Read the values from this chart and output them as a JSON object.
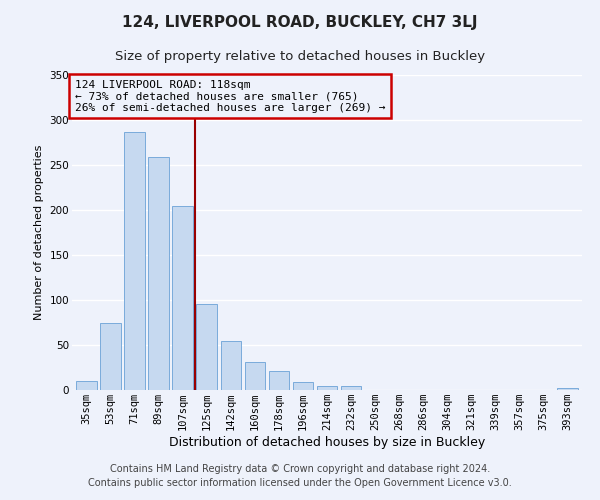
{
  "title": "124, LIVERPOOL ROAD, BUCKLEY, CH7 3LJ",
  "subtitle": "Size of property relative to detached houses in Buckley",
  "xlabel": "Distribution of detached houses by size in Buckley",
  "ylabel": "Number of detached properties",
  "bar_labels": [
    "35sqm",
    "53sqm",
    "71sqm",
    "89sqm",
    "107sqm",
    "125sqm",
    "142sqm",
    "160sqm",
    "178sqm",
    "196sqm",
    "214sqm",
    "232sqm",
    "250sqm",
    "268sqm",
    "286sqm",
    "304sqm",
    "321sqm",
    "339sqm",
    "357sqm",
    "375sqm",
    "393sqm"
  ],
  "bar_values": [
    10,
    74,
    287,
    259,
    204,
    96,
    54,
    31,
    21,
    9,
    5,
    4,
    0,
    0,
    0,
    0,
    0,
    0,
    0,
    0,
    2
  ],
  "bar_color": "#c6d9f0",
  "bar_edge_color": "#7aabdb",
  "vline_x": 4.5,
  "vline_color": "#990000",
  "ylim": [
    0,
    350
  ],
  "yticks": [
    0,
    50,
    100,
    150,
    200,
    250,
    300,
    350
  ],
  "annotation_title": "124 LIVERPOOL ROAD: 118sqm",
  "annotation_line1": "← 73% of detached houses are smaller (765)",
  "annotation_line2": "26% of semi-detached houses are larger (269) →",
  "annotation_box_color": "#cc0000",
  "footer_line1": "Contains HM Land Registry data © Crown copyright and database right 2024.",
  "footer_line2": "Contains public sector information licensed under the Open Government Licence v3.0.",
  "bg_color": "#eef2fb",
  "grid_color": "#ffffff",
  "title_fontsize": 11,
  "subtitle_fontsize": 9.5,
  "xlabel_fontsize": 9,
  "ylabel_fontsize": 8,
  "footer_fontsize": 7,
  "tick_fontsize": 7.5,
  "ann_fontsize": 8
}
